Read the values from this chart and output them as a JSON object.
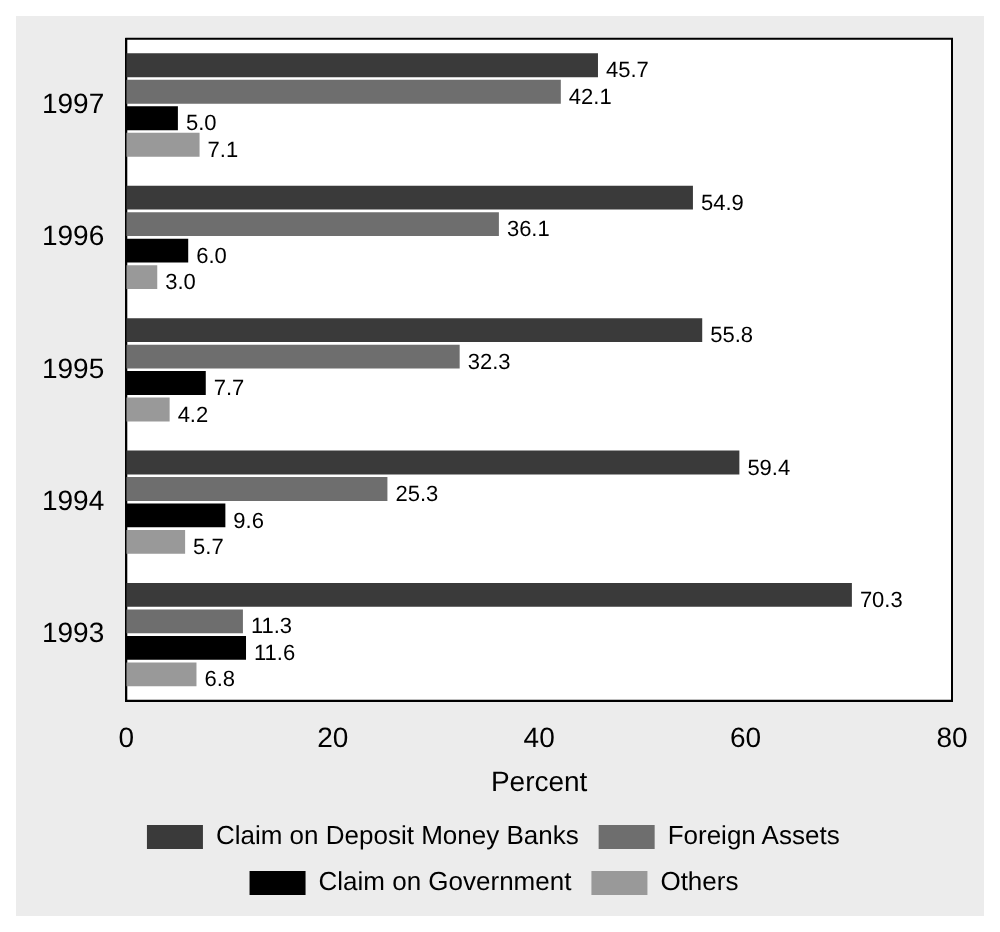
{
  "chart_data": {
    "type": "bar",
    "orientation": "horizontal",
    "categories": [
      "1997",
      "1996",
      "1995",
      "1994",
      "1993"
    ],
    "series": [
      {
        "name": "Claim on Deposit Money Banks",
        "color": "#3a3a3a",
        "values": [
          45.7,
          54.9,
          55.8,
          59.4,
          70.3
        ],
        "value_labels": [
          "45.7",
          "54.9",
          "55.8",
          "59.4",
          "70.3"
        ]
      },
      {
        "name": "Foreign Assets",
        "color": "#6e6e6e",
        "values": [
          42.1,
          36.1,
          32.3,
          25.3,
          11.3
        ],
        "value_labels": [
          "42.1",
          "36.1",
          "32.3",
          "25.3",
          "11.3"
        ]
      },
      {
        "name": "Claim on Government",
        "color": "#000000",
        "values": [
          5,
          6,
          7.7,
          9.6,
          11.6
        ],
        "value_labels": [
          "5.0",
          "6.0",
          "7.7",
          "9.6",
          "11.6"
        ]
      },
      {
        "name": "Others",
        "color": "#999999",
        "values": [
          7.1,
          3,
          4.2,
          5.7,
          6.8
        ],
        "value_labels": [
          "7.1",
          "3.0",
          "4.2",
          "5.7",
          "6.8"
        ]
      }
    ],
    "xlabel": "Percent",
    "xlim": [
      0,
      80
    ],
    "xticks": [
      0,
      20,
      40,
      60,
      80
    ],
    "grid": false,
    "legend": "bottom"
  }
}
